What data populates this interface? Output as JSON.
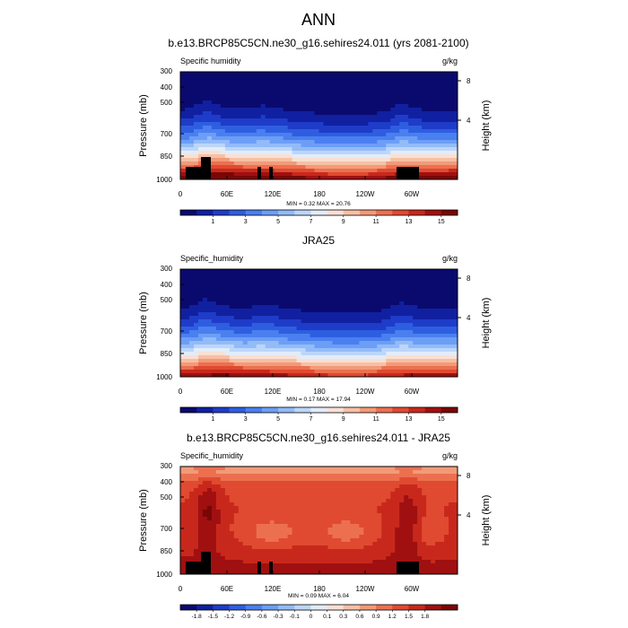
{
  "figure": {
    "title": "ANN"
  },
  "chart_data": [
    {
      "type": "heatmap",
      "title": "b.e13.BRCP85C5CN.ne30_g16.sehires24.011 (yrs 2081-2100)",
      "variable": "Specific humidity",
      "units": "g/kg",
      "ylabel": "Pressure (mb)",
      "ylabel_right": "Height (km)",
      "y_scale": "log",
      "ylim": [
        1000,
        300
      ],
      "yticks": [
        "300",
        "400",
        "500",
        "700",
        "850",
        "1000"
      ],
      "yticks_right": [
        "8",
        "4"
      ],
      "xticks": [
        "0",
        "60E",
        "120E",
        "180",
        "120W",
        "60W"
      ],
      "stats": "MIN =   0.32  MAX =  20.76",
      "colorbar": {
        "labels": [
          "1",
          "3",
          "5",
          "7",
          "9",
          "11",
          "13",
          "15"
        ],
        "min": 0,
        "max": 16
      },
      "field_kind": "abs",
      "surface": 1.1,
      "mask": "terrain"
    },
    {
      "type": "heatmap",
      "title": "JRA25",
      "variable": "Specific_humidity",
      "units": "g/kg",
      "ylabel": "Pressure (mb)",
      "ylabel_right": "Height (km)",
      "y_scale": "log",
      "ylim": [
        1000,
        300
      ],
      "yticks": [
        "300",
        "400",
        "500",
        "700",
        "850",
        "1000"
      ],
      "yticks_right": [
        "8",
        "4"
      ],
      "xticks": [
        "0",
        "60E",
        "120E",
        "180",
        "120W",
        "60W"
      ],
      "stats": "MIN =   0.17  MAX =  17.94",
      "colorbar": {
        "labels": [
          "1",
          "3",
          "5",
          "7",
          "9",
          "11",
          "13",
          "15"
        ],
        "min": 0,
        "max": 16
      },
      "field_kind": "abs",
      "surface": 1.0,
      "mask": "none"
    },
    {
      "type": "heatmap",
      "title": "b.e13.BRCP85C5CN.ne30_g16.sehires24.011 - JRA25",
      "variable": "Specific_humidity",
      "units": "g/kg",
      "ylabel": "Pressure (mb)",
      "ylabel_right": "Height (km)",
      "y_scale": "log",
      "ylim": [
        1000,
        300
      ],
      "yticks": [
        "300",
        "400",
        "500",
        "700",
        "850",
        "1000"
      ],
      "yticks_right": [
        "8",
        "4"
      ],
      "xticks": [
        "0",
        "60E",
        "120E",
        "180",
        "120W",
        "60W"
      ],
      "stats": "MIN =   0.09  MAX =   6.04",
      "colorbar": {
        "labels": [
          "-1.8",
          "-1.5",
          "-1.2",
          "-0.9",
          "-0.6",
          "-0.3",
          "-0.1",
          "0",
          "0.1",
          "0.3",
          "0.6",
          "0.9",
          "1.2",
          "1.5",
          "1.8"
        ]
      },
      "field_kind": "diff",
      "mask": "terrain"
    }
  ],
  "palette": [
    "#0a0a6e",
    "#1020a0",
    "#1e3cc8",
    "#2e5ee0",
    "#4a7ff0",
    "#6c9ef6",
    "#92bbf8",
    "#bcd6fa",
    "#e2ecf9",
    "#f9e0d4",
    "#f6c0a4",
    "#f29a78",
    "#ec7050",
    "#e04a30",
    "#c8281c",
    "#a01010",
    "#7a0606"
  ]
}
